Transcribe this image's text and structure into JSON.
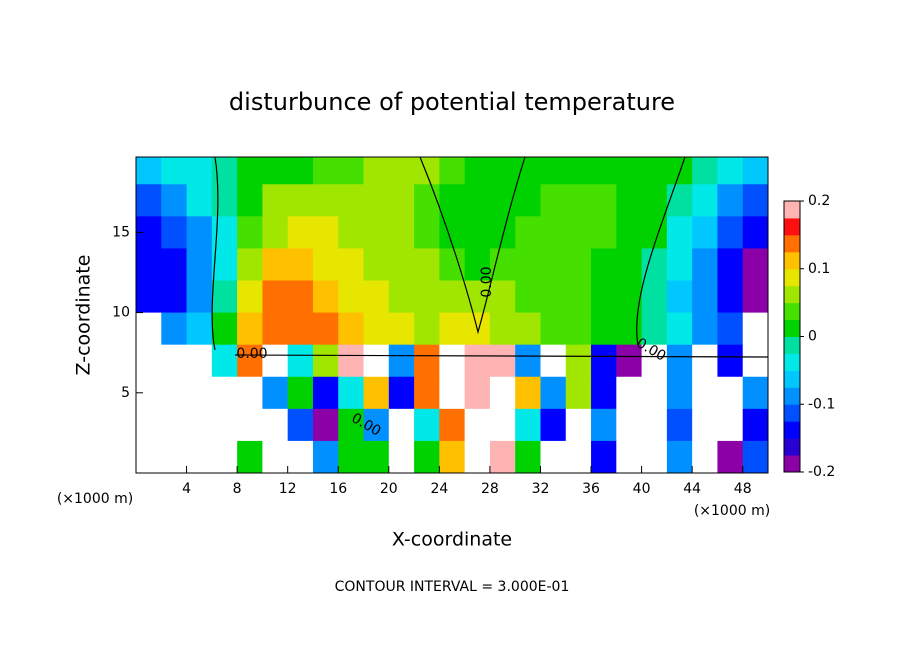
{
  "chart_data": {
    "type": "contour",
    "title": "disturbunce of potential temperature",
    "x_label": "X-coordinate",
    "y_label": "Z-coordinate",
    "x_unit": "(×1000 m)",
    "y_unit": "(×1000 m)",
    "footer": "CONTOUR INTERVAL = 3.000E-01",
    "annotations": [
      "0.00",
      "0.00",
      "0.00",
      "0.00"
    ],
    "xlim": [
      0,
      50
    ],
    "ylim": [
      0,
      19.7
    ],
    "xticks": [
      4,
      8,
      12,
      16,
      20,
      24,
      28,
      32,
      36,
      40,
      44,
      48
    ],
    "yticks": [
      5,
      10,
      15
    ],
    "x": [
      1,
      3,
      5,
      7,
      9,
      11,
      13,
      15,
      17,
      19,
      21,
      23,
      25,
      27,
      29,
      31,
      33,
      35,
      37,
      39,
      41,
      43,
      45,
      47,
      49
    ],
    "y": [
      19,
      17,
      15,
      13,
      11,
      9,
      7,
      5,
      3,
      1
    ],
    "z": [
      [
        -0.06,
        -0.04,
        -0.03,
        -0.01,
        0.0,
        0.01,
        0.02,
        0.03,
        0.04,
        0.05,
        0.05,
        0.05,
        0.04,
        0.02,
        0.01,
        0.0,
        0.0,
        0.01,
        0.02,
        0.02,
        0.01,
        0.0,
        -0.02,
        -0.04,
        -0.06
      ],
      [
        -0.12,
        -0.09,
        -0.05,
        -0.02,
        0.02,
        0.05,
        0.06,
        0.07,
        0.07,
        0.06,
        0.05,
        0.04,
        0.02,
        0.01,
        0.0,
        0.02,
        0.03,
        0.03,
        0.03,
        0.02,
        0.01,
        -0.02,
        -0.05,
        -0.09,
        -0.12
      ],
      [
        -0.15,
        -0.12,
        -0.08,
        -0.03,
        0.03,
        0.07,
        0.08,
        0.08,
        0.07,
        0.06,
        0.05,
        0.04,
        0.02,
        0.01,
        0.0,
        0.03,
        0.04,
        0.04,
        0.03,
        0.02,
        0.0,
        -0.03,
        -0.07,
        -0.11,
        -0.14
      ],
      [
        -0.15,
        -0.13,
        -0.1,
        -0.03,
        0.06,
        0.1,
        0.11,
        0.09,
        0.08,
        0.07,
        0.06,
        0.05,
        0.04,
        0.02,
        0.03,
        0.04,
        0.04,
        0.03,
        0.02,
        0.01,
        -0.01,
        -0.05,
        -0.09,
        -0.14,
        -0.18
      ],
      [
        -0.14,
        -0.14,
        -0.1,
        -0.02,
        0.09,
        0.13,
        0.14,
        0.12,
        0.09,
        0.08,
        0.07,
        0.06,
        0.05,
        0.06,
        0.05,
        0.04,
        0.04,
        0.03,
        0.02,
        0.01,
        -0.02,
        -0.06,
        -0.1,
        -0.15,
        -0.2
      ],
      [
        -0.3,
        -0.1,
        -0.06,
        0.0,
        0.12,
        0.15,
        0.15,
        0.13,
        0.1,
        0.09,
        0.08,
        0.07,
        0.08,
        0.09,
        0.07,
        0.05,
        0.04,
        0.03,
        0.02,
        0.0,
        -0.02,
        -0.05,
        -0.08,
        -0.12,
        -0.3
      ],
      [
        0.3,
        0.3,
        -0.3,
        -0.05,
        0.15,
        0.3,
        -0.05,
        0.05,
        0.2,
        0.3,
        -0.1,
        0.15,
        0.3,
        0.2,
        0.18,
        -0.1,
        0.3,
        0.05,
        -0.15,
        -0.2,
        0.3,
        -0.1,
        0.3,
        -0.15,
        0.3
      ],
      [
        0.3,
        -0.3,
        -0.3,
        -0.3,
        -0.3,
        -0.1,
        0.0,
        -0.15,
        -0.05,
        0.1,
        -0.15,
        0.15,
        0.3,
        0.2,
        0.3,
        0.1,
        -0.1,
        0.05,
        -0.15,
        -0.3,
        -0.3,
        -0.1,
        0.3,
        0.3,
        -0.1
      ],
      [
        0.3,
        0.3,
        -0.3,
        -0.3,
        -0.3,
        0.3,
        -0.12,
        -0.18,
        0.0,
        -0.1,
        0.3,
        -0.05,
        0.15,
        0.3,
        0.3,
        -0.05,
        -0.15,
        0.3,
        -0.1,
        -0.3,
        0.3,
        -0.12,
        0.3,
        0.3,
        -0.15
      ],
      [
        -0.3,
        0.3,
        0.3,
        -0.3,
        0.0,
        0.3,
        0.3,
        -0.1,
        0.02,
        0.0,
        0.3,
        0.0,
        0.1,
        0.3,
        0.2,
        0.0,
        0.3,
        0.3,
        -0.15,
        0.3,
        0.3,
        -0.1,
        0.3,
        -0.2,
        -0.12
      ]
    ],
    "colorbar_lim": [
      -0.2,
      0.2
    ],
    "colorbar_ticks": [
      -0.2,
      -0.1,
      0,
      0.1,
      0.2
    ],
    "colors": [
      "#8c00a8",
      "#2800d2",
      "#0000ff",
      "#0050ff",
      "#0090ff",
      "#00c8ff",
      "#00e8e8",
      "#00e0a0",
      "#00d200",
      "#46e000",
      "#a0e600",
      "#e6e600",
      "#ffc000",
      "#ff7000",
      "#ff1010",
      "#ffb4b4"
    ],
    "out_of_range_color": "#ffffff"
  }
}
